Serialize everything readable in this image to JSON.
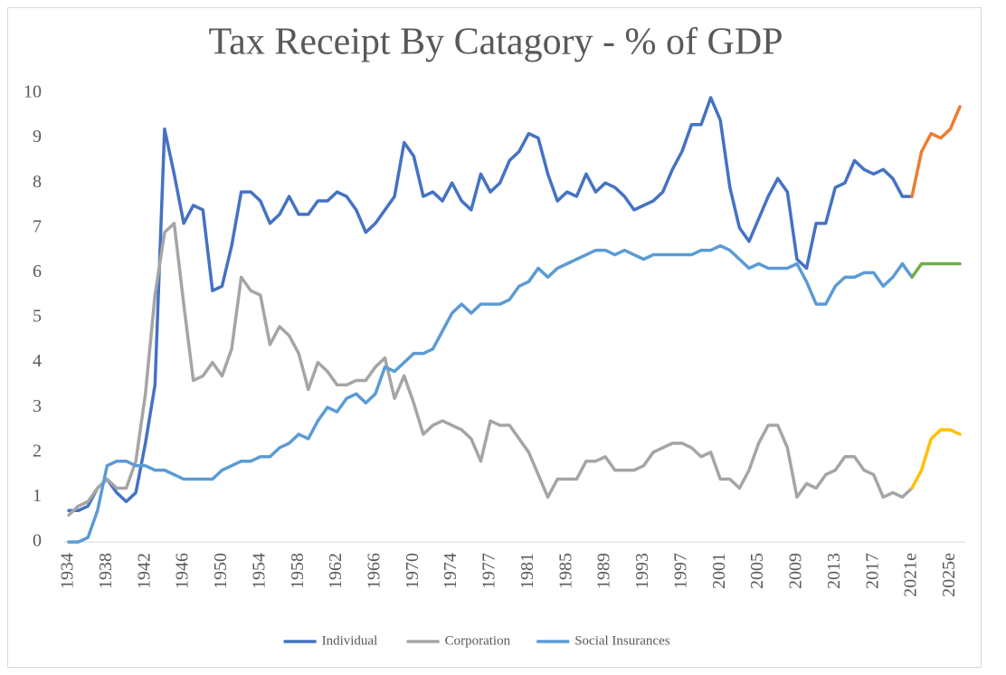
{
  "chart_data": {
    "type": "line",
    "title": "Tax Receipt By Catagory - % of GDP",
    "categories": [
      "1934",
      null,
      null,
      null,
      "1938",
      null,
      null,
      null,
      "1942",
      null,
      null,
      null,
      "1946",
      null,
      null,
      null,
      "1950",
      null,
      null,
      null,
      "1954",
      null,
      null,
      null,
      "1958",
      null,
      null,
      null,
      "1962",
      null,
      null,
      null,
      "1966",
      null,
      null,
      null,
      "1970",
      null,
      null,
      null,
      "1974",
      null,
      null,
      null,
      "1977",
      null,
      null,
      null,
      "1981",
      null,
      null,
      null,
      "1985",
      null,
      null,
      null,
      "1989",
      null,
      null,
      null,
      "1993",
      null,
      null,
      null,
      "1997",
      null,
      null,
      null,
      "2001",
      null,
      null,
      null,
      "2005",
      null,
      null,
      null,
      "2009",
      null,
      null,
      null,
      "2013",
      null,
      null,
      null,
      "2017",
      null,
      null,
      null,
      "2021e",
      null,
      null,
      null,
      "2025e",
      null
    ],
    "forecast_start": "2021e",
    "series": [
      {
        "name": "Individual",
        "color": "#4472c4",
        "forecast_color": "#ed7d31",
        "values": [
          0.7,
          0.7,
          0.8,
          1.2,
          1.4,
          1.1,
          0.9,
          1.1,
          2.2,
          3.5,
          9.2,
          8.2,
          7.1,
          7.5,
          7.4,
          5.6,
          5.7,
          6.6,
          7.8,
          7.8,
          7.6,
          7.1,
          7.3,
          7.7,
          7.3,
          7.3,
          7.6,
          7.6,
          7.8,
          7.7,
          7.4,
          6.9,
          7.1,
          7.4,
          7.7,
          8.9,
          8.6,
          7.7,
          7.8,
          7.6,
          8.0,
          7.6,
          7.4,
          8.2,
          7.8,
          8.0,
          8.5,
          8.7,
          9.1,
          9.0,
          8.2,
          7.6,
          7.8,
          7.7,
          8.2,
          7.8,
          8.0,
          7.9,
          7.7,
          7.4,
          7.5,
          7.6,
          7.8,
          8.3,
          8.7,
          9.3,
          9.3,
          9.9,
          9.4,
          7.9,
          7.0,
          6.7,
          7.2,
          7.7,
          8.1,
          7.8,
          6.3,
          6.1,
          7.1,
          7.1,
          7.9,
          8.0,
          8.5,
          8.3,
          8.2,
          8.3,
          8.1,
          7.7,
          7.7,
          8.7,
          9.1,
          9.0,
          9.2,
          9.7
        ]
      },
      {
        "name": "Corporation",
        "color": "#a5a5a5",
        "forecast_color": "#ffc000",
        "values": [
          0.6,
          0.8,
          0.9,
          1.2,
          1.4,
          1.2,
          1.2,
          1.8,
          3.3,
          5.5,
          6.9,
          7.1,
          5.3,
          3.6,
          3.7,
          4.0,
          3.7,
          4.3,
          5.9,
          5.6,
          5.5,
          4.4,
          4.8,
          4.6,
          4.2,
          3.4,
          4.0,
          3.8,
          3.5,
          3.5,
          3.6,
          3.6,
          3.9,
          4.1,
          3.2,
          3.7,
          3.1,
          2.4,
          2.6,
          2.7,
          2.6,
          2.5,
          2.3,
          1.8,
          2.7,
          2.6,
          2.6,
          2.3,
          2.0,
          1.5,
          1.0,
          1.4,
          1.4,
          1.4,
          1.8,
          1.8,
          1.9,
          1.6,
          1.6,
          1.6,
          1.7,
          2.0,
          2.1,
          2.2,
          2.2,
          2.1,
          1.9,
          2.0,
          1.4,
          1.4,
          1.2,
          1.6,
          2.2,
          2.6,
          2.6,
          2.1,
          1.0,
          1.3,
          1.2,
          1.5,
          1.6,
          1.9,
          1.9,
          1.6,
          1.5,
          1.0,
          1.1,
          1.0,
          1.2,
          1.6,
          2.3,
          2.5,
          2.5,
          2.4
        ]
      },
      {
        "name": "Social Insurances",
        "color": "#5b9bd5",
        "forecast_color": "#70ad47",
        "values": [
          0,
          0,
          0.1,
          0.7,
          1.7,
          1.8,
          1.8,
          1.7,
          1.7,
          1.6,
          1.6,
          1.5,
          1.4,
          1.4,
          1.4,
          1.4,
          1.6,
          1.7,
          1.8,
          1.8,
          1.9,
          1.9,
          2.1,
          2.2,
          2.4,
          2.3,
          2.7,
          3.0,
          2.9,
          3.2,
          3.3,
          3.1,
          3.3,
          3.9,
          3.8,
          4.0,
          4.2,
          4.2,
          4.3,
          4.7,
          5.1,
          5.3,
          5.1,
          5.3,
          5.3,
          5.3,
          5.4,
          5.7,
          5.8,
          6.1,
          5.9,
          6.1,
          6.2,
          6.3,
          6.4,
          6.5,
          6.5,
          6.4,
          6.5,
          6.4,
          6.3,
          6.4,
          6.4,
          6.4,
          6.4,
          6.4,
          6.5,
          6.5,
          6.6,
          6.5,
          6.3,
          6.1,
          6.2,
          6.1,
          6.1,
          6.1,
          6.2,
          5.8,
          5.3,
          5.3,
          5.7,
          5.9,
          5.9,
          6.0,
          6.0,
          5.7,
          5.9,
          6.2,
          5.9,
          6.2,
          6.2,
          6.2,
          6.2,
          6.2
        ]
      }
    ],
    "ylim": [
      0,
      10
    ],
    "yticks": [
      0,
      1,
      2,
      3,
      4,
      5,
      6,
      7,
      8,
      9,
      10
    ],
    "grid": false,
    "legend": "bottom"
  }
}
